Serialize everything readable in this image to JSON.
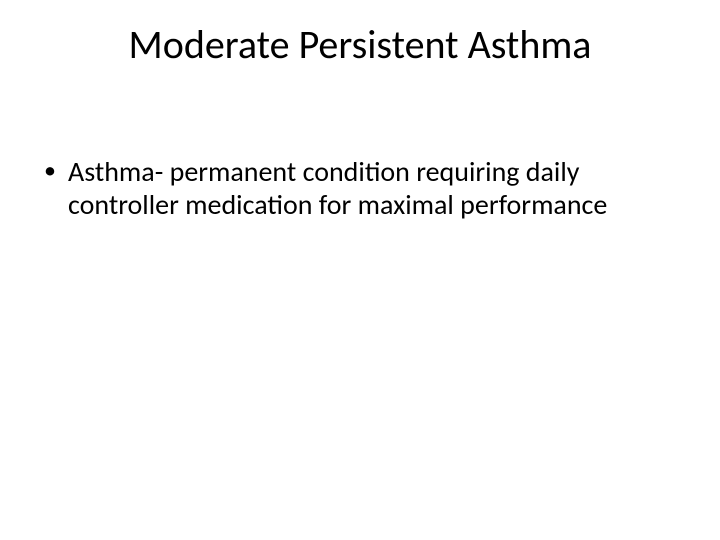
{
  "slide": {
    "title": "Moderate Persistent Asthma",
    "bullets": [
      "Asthma- permanent condition requiring daily controller medication for maximal performance"
    ],
    "title_fontsize": 40,
    "body_fontsize": 28,
    "background_color": "#ffffff",
    "text_color": "#000000",
    "font_family": "Calibri"
  }
}
